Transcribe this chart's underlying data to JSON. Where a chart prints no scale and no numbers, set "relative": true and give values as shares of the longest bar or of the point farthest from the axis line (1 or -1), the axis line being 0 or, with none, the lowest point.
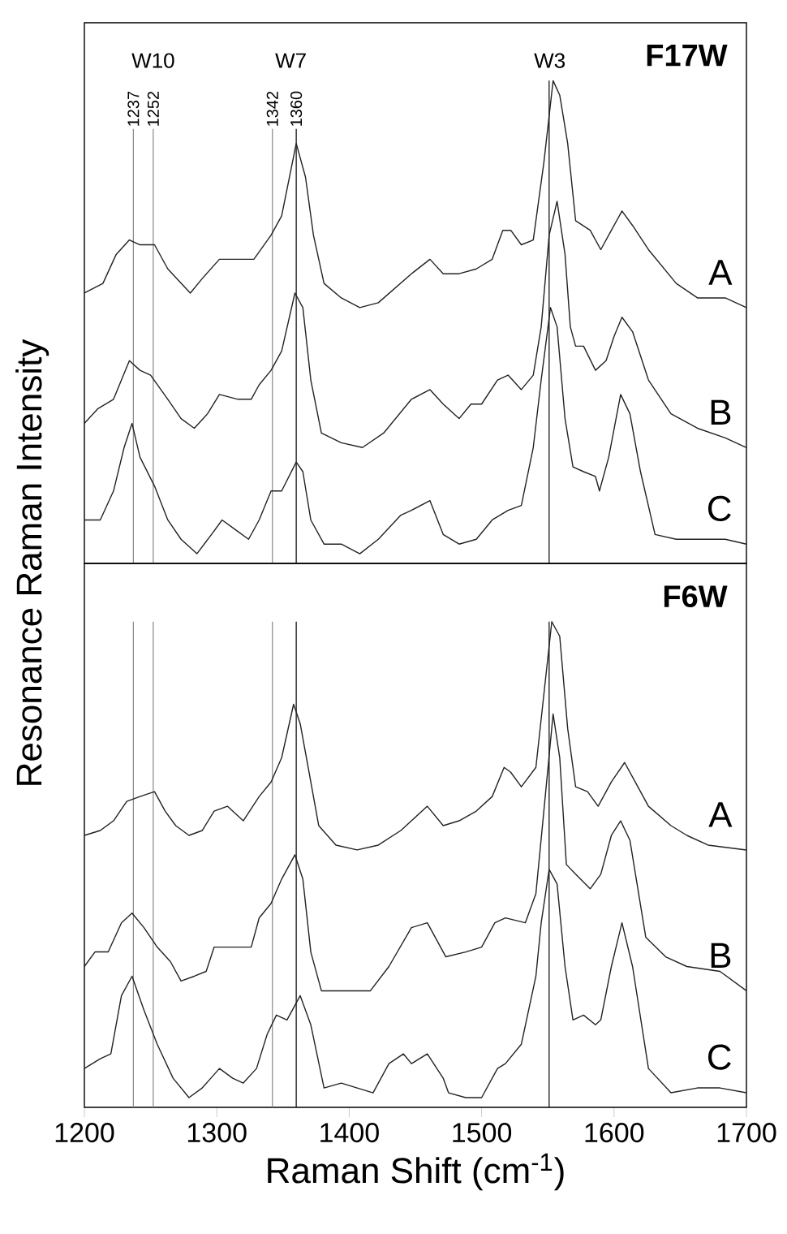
{
  "chart_data": [
    {
      "type": "line",
      "title": "F17W",
      "relative": true,
      "xlim": [
        1200,
        1700
      ],
      "xticks": [
        1200,
        1300,
        1400,
        1500,
        1600,
        1700
      ],
      "tick_labels": false,
      "grid": false,
      "marker": "none",
      "line_style": "solid",
      "annotations": [
        "W10",
        "W7",
        "W3"
      ],
      "ref_lines": [
        {
          "axis": "x",
          "value": 1237,
          "label": "1237",
          "color": "#888888"
        },
        {
          "axis": "x",
          "value": 1252,
          "label": "1252",
          "color": "#888888"
        },
        {
          "axis": "x",
          "value": 1342,
          "label": "1342",
          "color": "#888888"
        },
        {
          "axis": "x",
          "value": 1360,
          "label": "1360",
          "color": "#000000"
        },
        {
          "axis": "x",
          "value": 1551,
          "color": "#000000"
        }
      ],
      "series": [
        {
          "name": "A",
          "color": "#222222",
          "x": [
            1200,
            1214,
            1224,
            1234,
            1242,
            1253,
            1263,
            1280,
            1289,
            1302,
            1312,
            1328,
            1341,
            1349,
            1360,
            1367,
            1373,
            1381,
            1394,
            1408,
            1422,
            1447,
            1461,
            1471,
            1483,
            1496,
            1508,
            1516,
            1522,
            1530,
            1539,
            1547,
            1554,
            1559,
            1565,
            1571,
            1582,
            1590,
            1598,
            1606,
            1614,
            1626,
            1647,
            1663,
            1684,
            1700
          ],
          "values": [
            0.56,
            0.58,
            0.64,
            0.67,
            0.66,
            0.66,
            0.61,
            0.56,
            0.59,
            0.63,
            0.63,
            0.63,
            0.68,
            0.72,
            0.87,
            0.8,
            0.68,
            0.58,
            0.55,
            0.53,
            0.54,
            0.6,
            0.63,
            0.6,
            0.6,
            0.61,
            0.63,
            0.69,
            0.69,
            0.66,
            0.67,
            0.83,
            1.0,
            0.97,
            0.87,
            0.71,
            0.69,
            0.65,
            0.69,
            0.73,
            0.7,
            0.65,
            0.58,
            0.55,
            0.55,
            0.53
          ]
        },
        {
          "name": "B",
          "color": "#222222",
          "x": [
            1200,
            1210,
            1222,
            1234,
            1242,
            1250,
            1263,
            1273,
            1283,
            1293,
            1302,
            1316,
            1326,
            1332,
            1341,
            1349,
            1359,
            1365,
            1371,
            1379,
            1394,
            1410,
            1426,
            1447,
            1461,
            1471,
            1483,
            1492,
            1500,
            1512,
            1520,
            1530,
            1539,
            1545,
            1551,
            1557,
            1563,
            1567,
            1571,
            1577,
            1586,
            1594,
            1600,
            1606,
            1614,
            1626,
            1643,
            1663,
            1684,
            1700
          ],
          "values": [
            0.29,
            0.32,
            0.34,
            0.42,
            0.4,
            0.39,
            0.34,
            0.3,
            0.28,
            0.31,
            0.35,
            0.34,
            0.34,
            0.37,
            0.4,
            0.44,
            0.56,
            0.53,
            0.38,
            0.27,
            0.25,
            0.24,
            0.27,
            0.34,
            0.36,
            0.33,
            0.3,
            0.33,
            0.33,
            0.38,
            0.39,
            0.36,
            0.39,
            0.49,
            0.68,
            0.75,
            0.64,
            0.49,
            0.45,
            0.45,
            0.4,
            0.42,
            0.47,
            0.51,
            0.48,
            0.38,
            0.31,
            0.28,
            0.26,
            0.24
          ]
        },
        {
          "name": "C",
          "color": "#222222",
          "x": [
            1200,
            1212,
            1222,
            1230,
            1236,
            1242,
            1253,
            1263,
            1273,
            1285,
            1296,
            1304,
            1314,
            1324,
            1332,
            1341,
            1349,
            1360,
            1365,
            1371,
            1381,
            1394,
            1408,
            1422,
            1439,
            1447,
            1461,
            1471,
            1483,
            1496,
            1508,
            1520,
            1530,
            1539,
            1545,
            1552,
            1557,
            1563,
            1569,
            1577,
            1586,
            1589,
            1596,
            1605,
            1612,
            1620,
            1631,
            1647,
            1663,
            1684,
            1700
          ],
          "values": [
            0.09,
            0.09,
            0.15,
            0.24,
            0.29,
            0.22,
            0.16,
            0.09,
            0.05,
            0.02,
            0.06,
            0.09,
            0.07,
            0.05,
            0.09,
            0.15,
            0.15,
            0.21,
            0.19,
            0.09,
            0.04,
            0.04,
            0.02,
            0.05,
            0.1,
            0.11,
            0.13,
            0.06,
            0.04,
            0.05,
            0.09,
            0.11,
            0.12,
            0.24,
            0.38,
            0.53,
            0.49,
            0.3,
            0.2,
            0.19,
            0.18,
            0.15,
            0.22,
            0.35,
            0.31,
            0.19,
            0.06,
            0.05,
            0.05,
            0.05,
            0.04
          ]
        }
      ]
    },
    {
      "type": "line",
      "title": "F6W",
      "relative": true,
      "xlim": [
        1200,
        1700
      ],
      "xticks": [
        1200,
        1300,
        1400,
        1500,
        1600,
        1700
      ],
      "xlabel": "Raman Shift (cm$^{-1}$)",
      "ylabel": "Resonance Raman Intensity",
      "grid": false,
      "marker": "none",
      "line_style": "solid",
      "ref_lines": [
        {
          "axis": "x",
          "value": 1237,
          "color": "#888888"
        },
        {
          "axis": "x",
          "value": 1252,
          "color": "#888888"
        },
        {
          "axis": "x",
          "value": 1342,
          "color": "#888888"
        },
        {
          "axis": "x",
          "value": 1360,
          "color": "#000000"
        },
        {
          "axis": "x",
          "value": 1551,
          "color": "#000000"
        }
      ],
      "series": [
        {
          "name": "A",
          "color": "#222222",
          "x": [
            1200,
            1212,
            1222,
            1232,
            1242,
            1253,
            1261,
            1269,
            1279,
            1289,
            1298,
            1308,
            1320,
            1332,
            1341,
            1349,
            1358,
            1363,
            1369,
            1377,
            1390,
            1406,
            1422,
            1439,
            1447,
            1459,
            1471,
            1483,
            1496,
            1508,
            1517,
            1522,
            1530,
            1541,
            1547,
            1553,
            1559,
            1565,
            1571,
            1580,
            1588,
            1598,
            1608,
            1616,
            1626,
            1643,
            1655,
            1671,
            1700
          ],
          "values": [
            0.56,
            0.57,
            0.59,
            0.63,
            0.64,
            0.65,
            0.61,
            0.58,
            0.56,
            0.57,
            0.61,
            0.62,
            0.59,
            0.64,
            0.67,
            0.72,
            0.83,
            0.79,
            0.7,
            0.58,
            0.54,
            0.53,
            0.54,
            0.57,
            0.59,
            0.62,
            0.58,
            0.59,
            0.61,
            0.64,
            0.7,
            0.69,
            0.66,
            0.7,
            0.85,
            1.0,
            0.97,
            0.78,
            0.66,
            0.65,
            0.62,
            0.67,
            0.71,
            0.67,
            0.62,
            0.58,
            0.56,
            0.54,
            0.53
          ]
        },
        {
          "name": "B",
          "color": "#222222",
          "x": [
            1200,
            1208,
            1218,
            1228,
            1236,
            1245,
            1255,
            1265,
            1273,
            1283,
            1292,
            1298,
            1308,
            1318,
            1326,
            1332,
            1341,
            1349,
            1359,
            1365,
            1371,
            1379,
            1398,
            1416,
            1430,
            1447,
            1459,
            1473,
            1488,
            1500,
            1510,
            1518,
            1533,
            1541,
            1547,
            1554,
            1559,
            1564,
            1571,
            1582,
            1590,
            1598,
            1605,
            1612,
            1624,
            1639,
            1655,
            1680,
            1700
          ],
          "values": [
            0.29,
            0.32,
            0.32,
            0.38,
            0.4,
            0.37,
            0.33,
            0.3,
            0.26,
            0.27,
            0.28,
            0.33,
            0.33,
            0.33,
            0.33,
            0.39,
            0.42,
            0.47,
            0.52,
            0.47,
            0.32,
            0.24,
            0.24,
            0.24,
            0.29,
            0.37,
            0.38,
            0.31,
            0.32,
            0.33,
            0.38,
            0.39,
            0.38,
            0.44,
            0.61,
            0.81,
            0.72,
            0.5,
            0.48,
            0.45,
            0.48,
            0.56,
            0.59,
            0.55,
            0.35,
            0.31,
            0.29,
            0.28,
            0.24
          ]
        },
        {
          "name": "C",
          "color": "#222222",
          "x": [
            1200,
            1212,
            1220,
            1228,
            1236,
            1245,
            1255,
            1267,
            1279,
            1289,
            1302,
            1312,
            1320,
            1330,
            1338,
            1345,
            1353,
            1363,
            1371,
            1381,
            1394,
            1406,
            1418,
            1430,
            1441,
            1447,
            1459,
            1471,
            1475,
            1488,
            1500,
            1512,
            1518,
            1530,
            1541,
            1545,
            1551,
            1557,
            1563,
            1569,
            1577,
            1586,
            1590,
            1598,
            1606,
            1614,
            1626,
            1643,
            1663,
            1680,
            1700
          ],
          "values": [
            0.08,
            0.1,
            0.11,
            0.23,
            0.27,
            0.2,
            0.13,
            0.06,
            0.02,
            0.04,
            0.08,
            0.06,
            0.05,
            0.08,
            0.15,
            0.19,
            0.18,
            0.23,
            0.17,
            0.04,
            0.05,
            0.04,
            0.03,
            0.09,
            0.11,
            0.09,
            0.11,
            0.06,
            0.03,
            0.02,
            0.02,
            0.08,
            0.09,
            0.13,
            0.27,
            0.38,
            0.49,
            0.46,
            0.29,
            0.18,
            0.19,
            0.17,
            0.18,
            0.29,
            0.38,
            0.29,
            0.08,
            0.03,
            0.04,
            0.04,
            0.03
          ]
        }
      ]
    }
  ]
}
